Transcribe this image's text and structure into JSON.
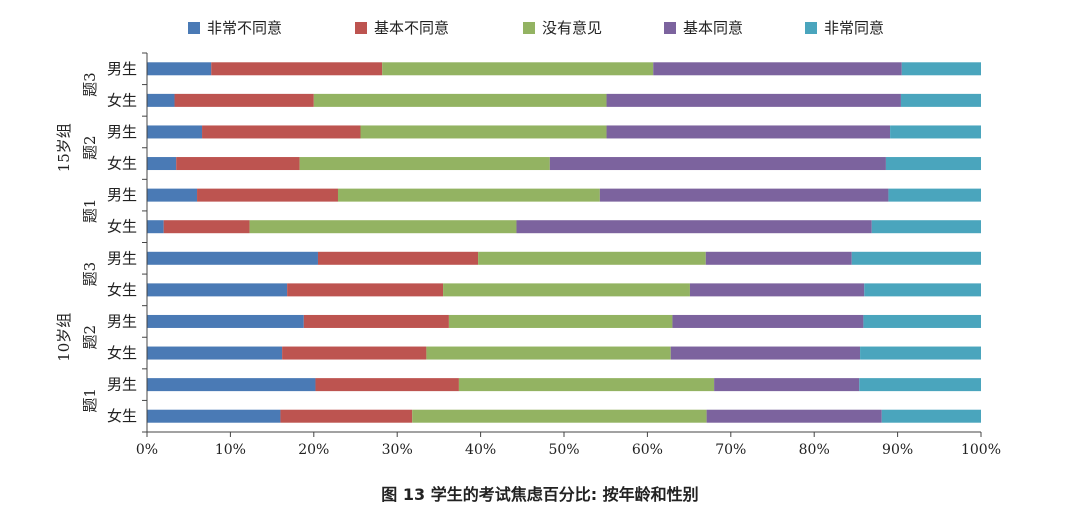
{
  "caption": "图 13   学生的考试焦虑百分比: 按年龄和性别",
  "chart_data": {
    "type": "bar",
    "orientation": "horizontal",
    "stacked": true,
    "title": "",
    "xlabel": "",
    "ylabel": "",
    "xlim": [
      0,
      100
    ],
    "xticks": [
      "0%",
      "10%",
      "20%",
      "30%",
      "40%",
      "50%",
      "60%",
      "70%",
      "80%",
      "90%",
      "100%"
    ],
    "legend_position": "top",
    "grid": false,
    "groups": [
      {
        "label": "15岁组",
        "items": [
          {
            "label": "题3",
            "rows": [
              "男生",
              "女生"
            ]
          },
          {
            "label": "题2",
            "rows": [
              "男生",
              "女生"
            ]
          },
          {
            "label": "题1",
            "rows": [
              "男生",
              "女生"
            ]
          }
        ]
      },
      {
        "label": "10岁组",
        "items": [
          {
            "label": "题3",
            "rows": [
              "男生",
              "女生"
            ]
          },
          {
            "label": "题2",
            "rows": [
              "男生",
              "女生"
            ]
          },
          {
            "label": "题1",
            "rows": [
              "男生",
              "女生"
            ]
          }
        ]
      }
    ],
    "categories": [
      "男生",
      "女生",
      "男生",
      "女生",
      "男生",
      "女生",
      "男生",
      "女生",
      "男生",
      "女生",
      "男生",
      "女生"
    ],
    "series": [
      {
        "name": "非常不同意",
        "color": "#4a7ab5",
        "values": [
          7.7,
          3.3,
          6.6,
          3.5,
          6.0,
          2.0,
          20.5,
          16.8,
          18.8,
          16.2,
          20.2,
          16.0
        ]
      },
      {
        "name": "基本不同意",
        "color": "#bd5450",
        "values": [
          20.5,
          16.7,
          19.0,
          14.8,
          16.9,
          10.3,
          19.2,
          18.7,
          17.4,
          17.3,
          17.2,
          15.8
        ]
      },
      {
        "name": "没有意见",
        "color": "#93b362",
        "values": [
          32.5,
          35.1,
          29.5,
          30.0,
          31.4,
          32.0,
          27.3,
          29.6,
          26.8,
          29.3,
          30.6,
          35.3
        ]
      },
      {
        "name": "基本同意",
        "color": "#7c639e",
        "values": [
          29.8,
          35.3,
          34.0,
          40.3,
          34.6,
          42.6,
          17.5,
          20.9,
          22.9,
          22.7,
          17.4,
          21.0
        ]
      },
      {
        "name": "非常同意",
        "color": "#4aa5bd",
        "values": [
          9.5,
          9.6,
          10.9,
          11.4,
          11.1,
          13.1,
          15.5,
          14.0,
          14.1,
          14.5,
          14.6,
          11.9
        ]
      }
    ]
  }
}
